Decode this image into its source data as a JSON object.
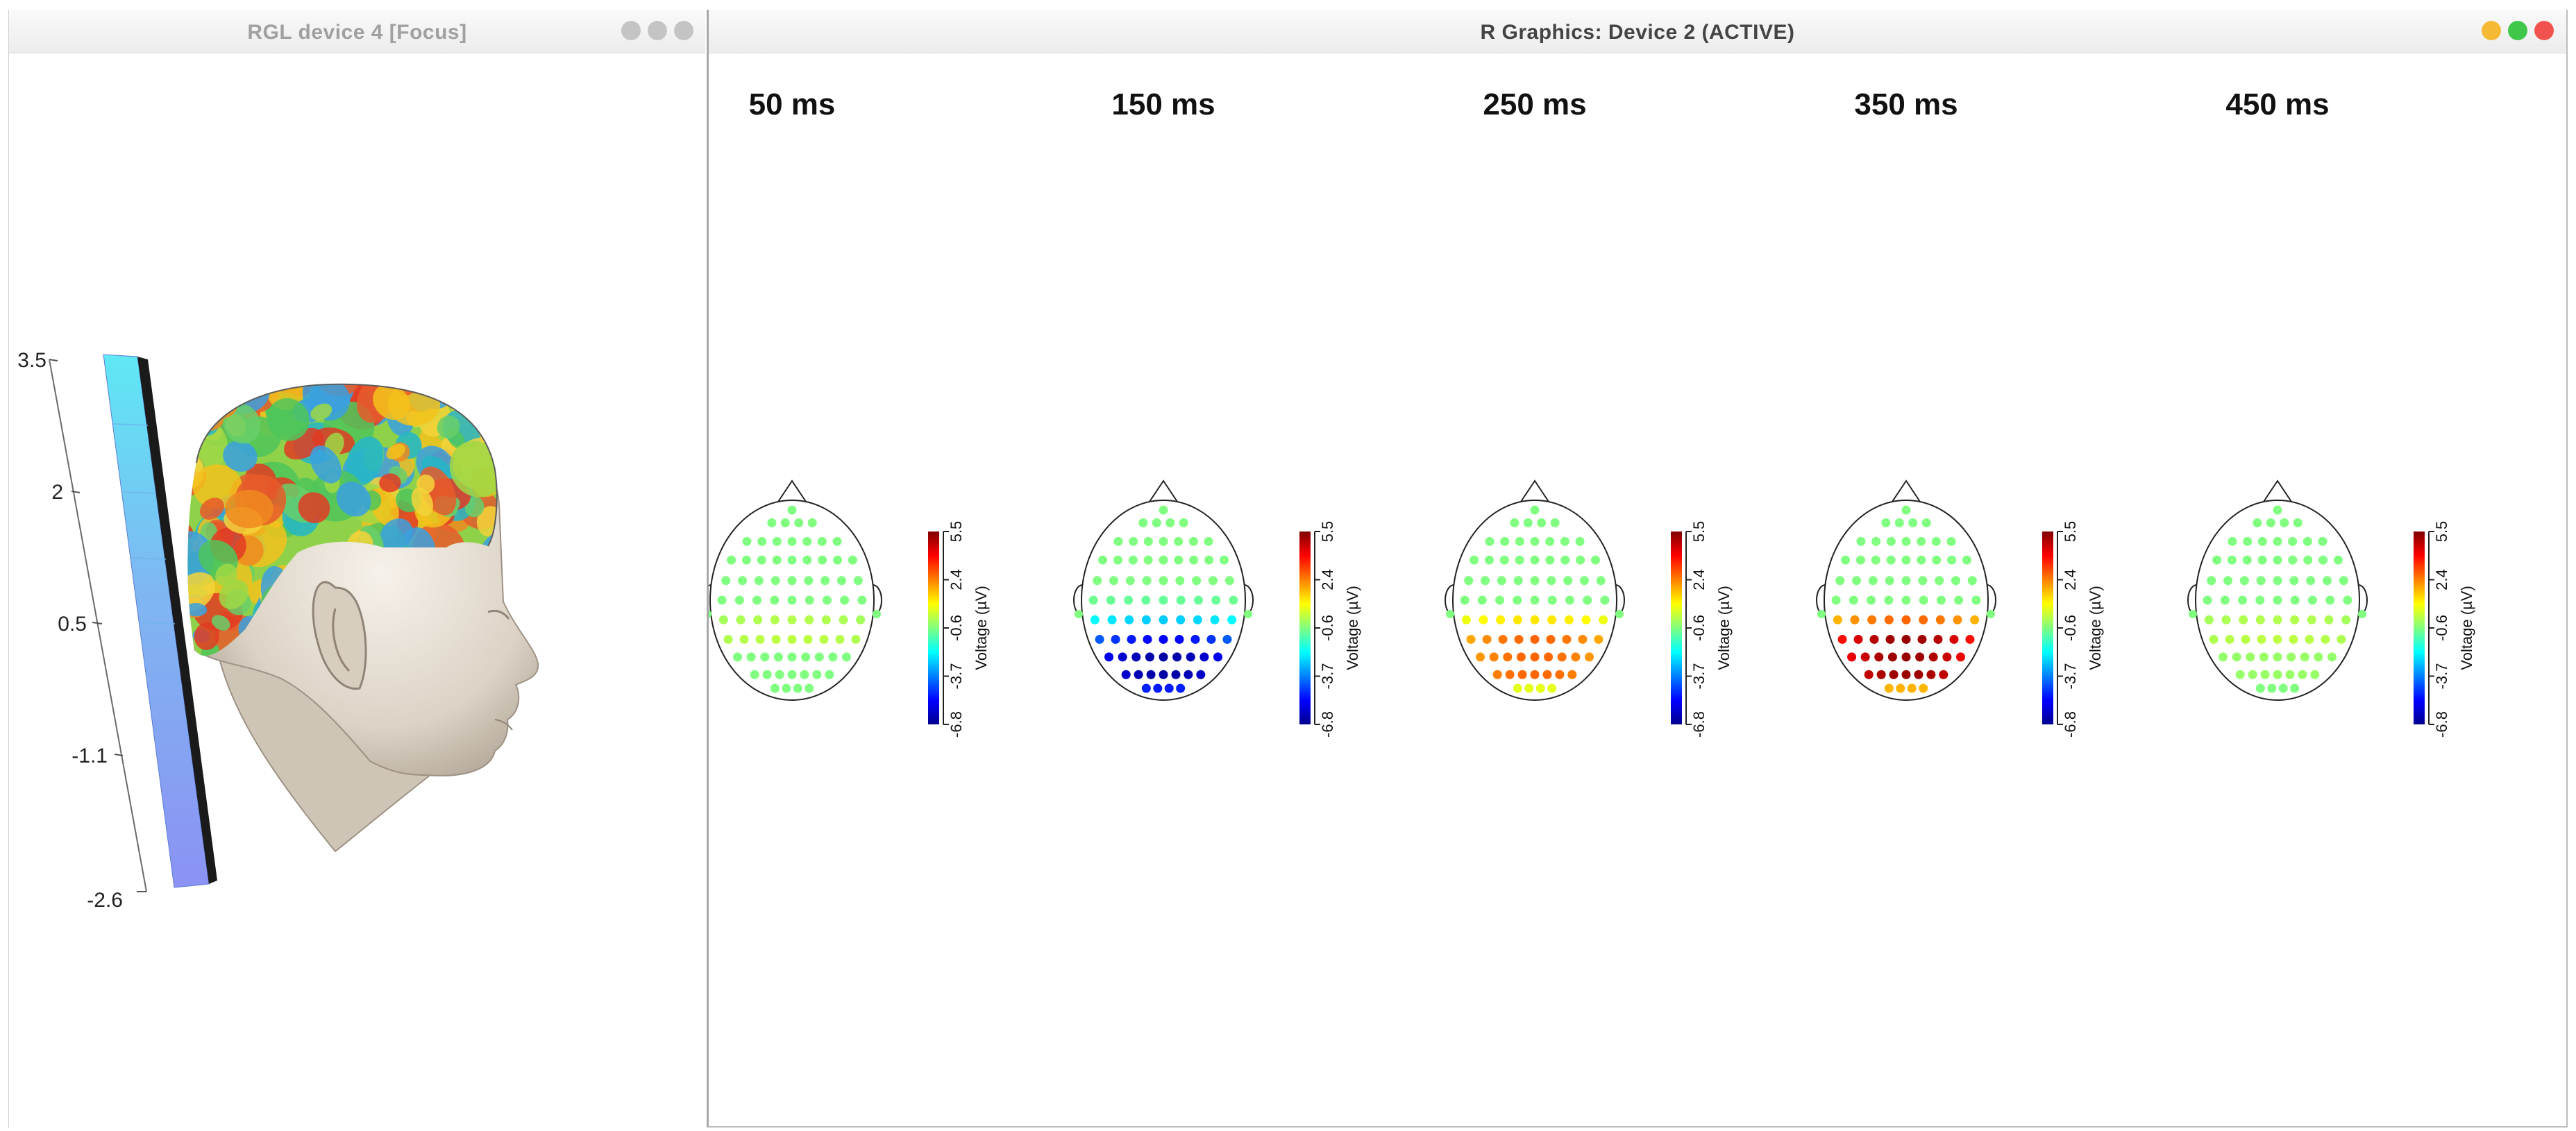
{
  "left_window": {
    "title": "RGL device 4 [Focus]",
    "colorbar_ticks": [
      "3.5",
      "2",
      "0.5",
      "-1.1",
      "-2.6"
    ],
    "buttons": [
      {
        "color": "#c4c4c4"
      },
      {
        "color": "#c4c4c4"
      },
      {
        "color": "#c4c4c4"
      }
    ]
  },
  "right_window": {
    "title": "R Graphics: Device 2 (ACTIVE)",
    "buttons": [
      {
        "color": "#f5b935"
      },
      {
        "color": "#3fc74a"
      },
      {
        "color": "#f1524d"
      }
    ]
  },
  "topomaps": [
    {
      "time": "50",
      "unit": "ms",
      "profile": [
        0.0,
        0.0,
        0.0,
        0.0,
        0.1,
        0.12,
        0.0,
        0.0
      ]
    },
    {
      "time": "150",
      "unit": "ms",
      "profile": [
        0.0,
        0.0,
        0.0,
        -0.05,
        -0.35,
        -0.75,
        -0.95,
        -0.7
      ]
    },
    {
      "time": "250",
      "unit": "ms",
      "profile": [
        0.0,
        0.0,
        0.0,
        0.0,
        0.3,
        0.55,
        0.55,
        0.2
      ]
    },
    {
      "time": "350",
      "unit": "ms",
      "profile": [
        0.0,
        0.0,
        0.0,
        0.0,
        0.55,
        0.95,
        0.95,
        0.4
      ]
    },
    {
      "time": "450",
      "unit": "ms",
      "profile": [
        0.0,
        0.0,
        0.0,
        0.0,
        0.1,
        0.12,
        0.05,
        0.0
      ]
    }
  ],
  "colorbar": {
    "label": "Voltage (µV)",
    "ticks": [
      "5.5",
      "2.4",
      "-0.6",
      "-3.7",
      "-6.8"
    ]
  },
  "colors": {
    "jet": [
      "#00008f",
      "#0000ff",
      "#0080ff",
      "#00ffff",
      "#80ff80",
      "#ffff00",
      "#ff8000",
      "#ff0000",
      "#800000"
    ]
  }
}
